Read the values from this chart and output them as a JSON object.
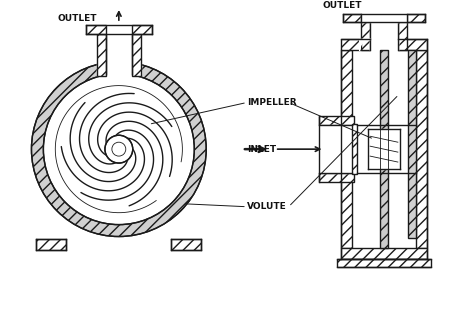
{
  "bg_color": "#ffffff",
  "line_color": "#1a1a1a",
  "text_color": "#111111",
  "labels": {
    "outlet_left": "OUTLET",
    "outlet_right": "OUTLET",
    "impeller": "IMPELLER",
    "inlet": "INLET",
    "volute": "VOLUTE"
  },
  "fig_width": 4.74,
  "fig_height": 3.11,
  "dpi": 100
}
